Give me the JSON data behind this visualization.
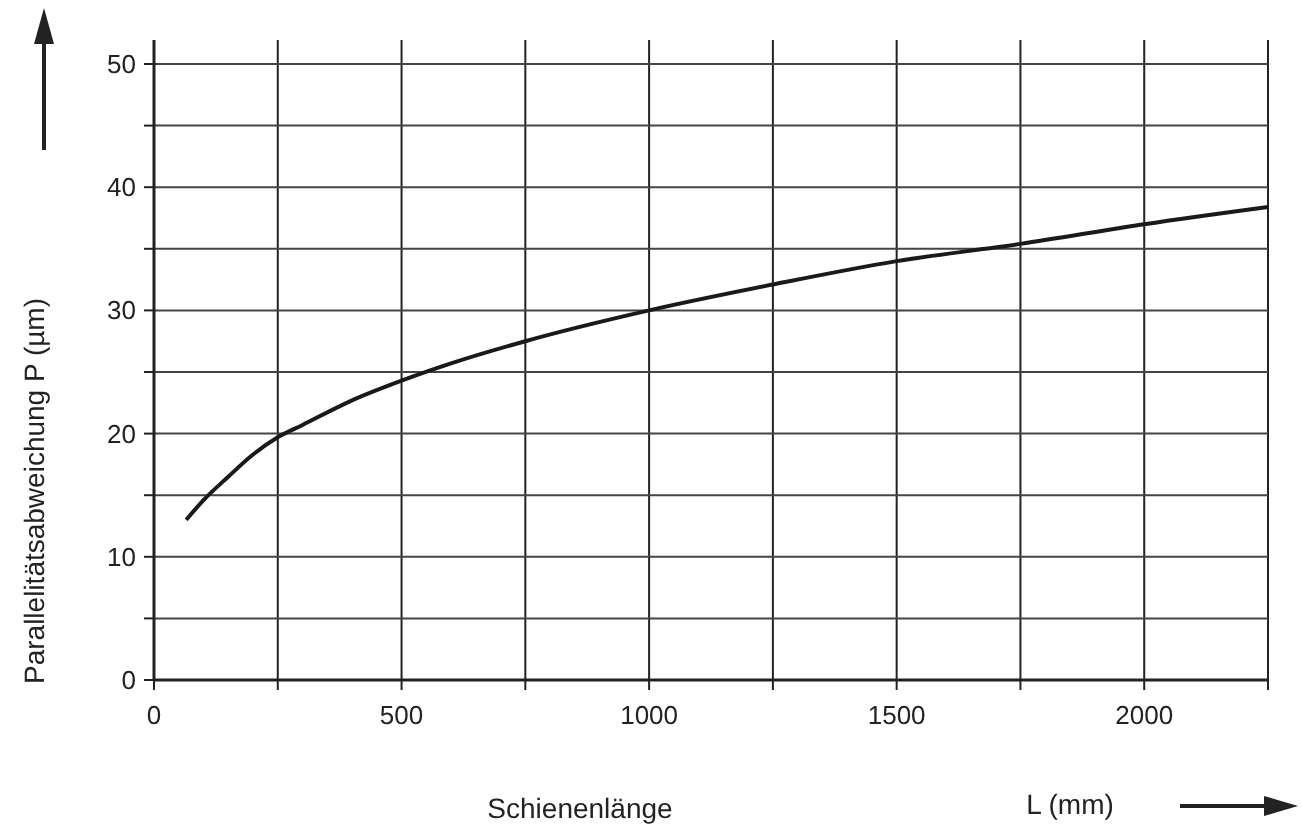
{
  "chart_data": {
    "type": "line",
    "xlabel": "Schienenlänge",
    "ylabel": "Parallelitätsabweichung   P  (µm)",
    "annotations": [
      "L (mm)"
    ],
    "xlim": [
      0,
      2250
    ],
    "ylim": [
      0,
      50
    ],
    "xticks": [
      0,
      {
        "value": 250,
        "label": null
      },
      500,
      {
        "value": 750,
        "label": null
      },
      1000,
      {
        "value": 1250,
        "label": null
      },
      1500,
      {
        "value": 1750,
        "label": null
      },
      2000,
      {
        "value": 2250,
        "label": null
      }
    ],
    "yticks": [
      0,
      {
        "value": 5,
        "label": null
      },
      10,
      {
        "value": 15,
        "label": null
      },
      20,
      {
        "value": 25,
        "label": null
      },
      30,
      {
        "value": 35,
        "label": null
      },
      40,
      {
        "value": 45,
        "label": null
      },
      50
    ],
    "grid": true,
    "series": [
      {
        "color": "#1a1a1a",
        "x": [
          65,
          100,
          150,
          200,
          250,
          300,
          400,
          500,
          600,
          750,
          1000,
          1250,
          1500,
          1750,
          2000,
          2250
        ],
        "values": [
          13,
          14.6,
          16.5,
          18.3,
          19.7,
          20.7,
          22.7,
          24.3,
          25.7,
          27.5,
          30,
          32.1,
          34,
          35.4,
          37,
          38.4
        ]
      }
    ]
  }
}
